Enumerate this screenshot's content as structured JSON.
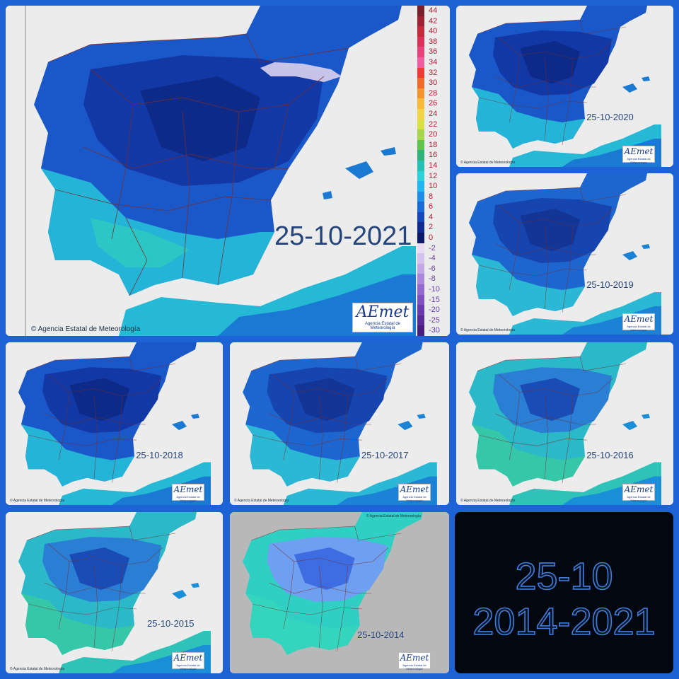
{
  "main_panel": {
    "date": "25-10-2021",
    "copyright": "© Agencia Estatal de Meteorología",
    "logo_text": "AEmet",
    "logo_sub": "Agencia Estatal de Meteorología"
  },
  "legend": {
    "positive_labels": [
      "44",
      "42",
      "40",
      "38",
      "36",
      "34",
      "32",
      "30",
      "28",
      "26",
      "24",
      "22",
      "20",
      "18",
      "16",
      "14",
      "12",
      "10",
      "8",
      "6",
      "4",
      "2",
      "0"
    ],
    "negative_labels": [
      "-2",
      "-4",
      "-6",
      "-8",
      "-10",
      "-15",
      "-20",
      "-25",
      "-30"
    ],
    "positive_colors": [
      "#7a1f2b",
      "#9e2233",
      "#c42a3c",
      "#d9335a",
      "#e8437a",
      "#f25ca0",
      "#ee3b33",
      "#f06a2a",
      "#f5932c",
      "#f7b93a",
      "#f2d544",
      "#d9e043",
      "#a6d64a",
      "#5ec44b",
      "#2fb37a",
      "#25c1b7",
      "#2bd0d8",
      "#21b6ee",
      "#1e8ee8",
      "#1a6ad8",
      "#1546bb",
      "#0f2b8f",
      "#0a1a66"
    ],
    "negative_colors": [
      "#e8dcf4",
      "#d4c1ee",
      "#c2a6e6",
      "#ab88db",
      "#9469cf",
      "#7e50c0",
      "#6b3aae",
      "#5b2a99",
      "#4a1d80"
    ]
  },
  "thumbnails": [
    {
      "date": "25-10-2020"
    },
    {
      "date": "25-10-2019"
    },
    {
      "date": "25-10-2018"
    },
    {
      "date": "25-10-2017"
    },
    {
      "date": "25-10-2016"
    },
    {
      "date": "25-10-2015"
    },
    {
      "date": "25-10-2014"
    }
  ],
  "thumb_copyright": "© Agencia Estatal de Meteorología",
  "summary": {
    "line1": "25-10",
    "line2": "2014-2021"
  }
}
